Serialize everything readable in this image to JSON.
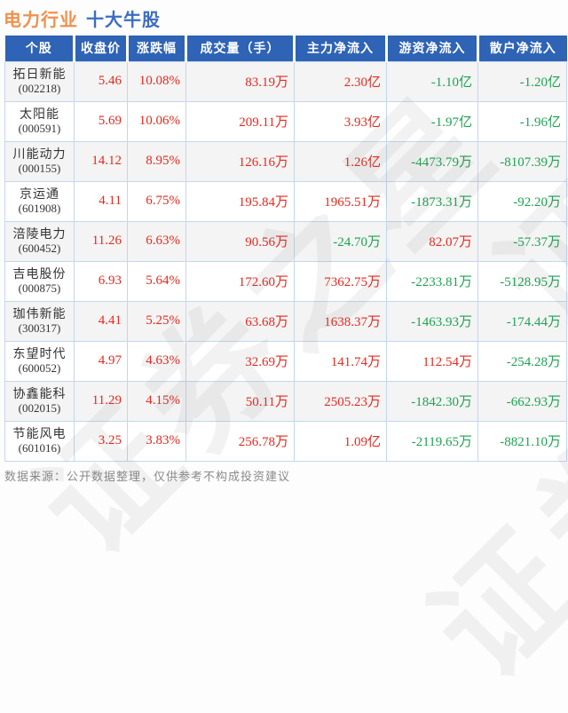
{
  "title": {
    "industry": "电力行业",
    "suffix": "十大牛股"
  },
  "table": {
    "headers": [
      "个股",
      "收盘价",
      "涨跌幅",
      "成交量（手）",
      "主力净流入",
      "游资净流入",
      "散户净流入"
    ],
    "rows": [
      {
        "name": "拓日新能",
        "code": "(002218)",
        "close": "5.46",
        "change": "10.08%",
        "volume": "83.19万",
        "main": "2.30亿",
        "hot": "-1.10亿",
        "retail": "-1.20亿"
      },
      {
        "name": "太阳能",
        "code": "(000591)",
        "close": "5.69",
        "change": "10.06%",
        "volume": "209.11万",
        "main": "3.93亿",
        "hot": "-1.97亿",
        "retail": "-1.96亿"
      },
      {
        "name": "川能动力",
        "code": "(000155)",
        "close": "14.12",
        "change": "8.95%",
        "volume": "126.16万",
        "main": "1.26亿",
        "hot": "-4473.79万",
        "retail": "-8107.39万"
      },
      {
        "name": "京运通",
        "code": "(601908)",
        "close": "4.11",
        "change": "6.75%",
        "volume": "195.84万",
        "main": "1965.51万",
        "hot": "-1873.31万",
        "retail": "-92.20万"
      },
      {
        "name": "涪陵电力",
        "code": "(600452)",
        "close": "11.26",
        "change": "6.63%",
        "volume": "90.56万",
        "main": "-24.70万",
        "hot": "82.07万",
        "retail": "-57.37万"
      },
      {
        "name": "吉电股份",
        "code": "(000875)",
        "close": "6.93",
        "change": "5.64%",
        "volume": "172.60万",
        "main": "7362.75万",
        "hot": "-2233.81万",
        "retail": "-5128.95万"
      },
      {
        "name": "珈伟新能",
        "code": "(300317)",
        "close": "4.41",
        "change": "5.25%",
        "volume": "63.68万",
        "main": "1638.37万",
        "hot": "-1463.93万",
        "retail": "-174.44万"
      },
      {
        "name": "东望时代",
        "code": "(600052)",
        "close": "4.97",
        "change": "4.63%",
        "volume": "32.69万",
        "main": "141.74万",
        "hot": "112.54万",
        "retail": "-254.28万"
      },
      {
        "name": "协鑫能科",
        "code": "(002015)",
        "close": "11.29",
        "change": "4.15%",
        "volume": "50.11万",
        "main": "2505.23万",
        "hot": "-1842.30万",
        "retail": "-662.93万"
      },
      {
        "name": "节能风电",
        "code": "(601016)",
        "close": "3.25",
        "change": "3.83%",
        "volume": "256.78万",
        "main": "1.09亿",
        "hot": "-2119.65万",
        "retail": "-8821.10万"
      }
    ]
  },
  "footer": {
    "text": "数据来源：公开数据整理，仅供参考不构成投资建议"
  },
  "watermark": {
    "text": "证券之星"
  },
  "colors": {
    "up": "#e8281e",
    "down": "#1ca350",
    "header_bg": "#2e63b5",
    "title_industry": "#f0914f",
    "title_suffix": "#3c6cc4"
  }
}
